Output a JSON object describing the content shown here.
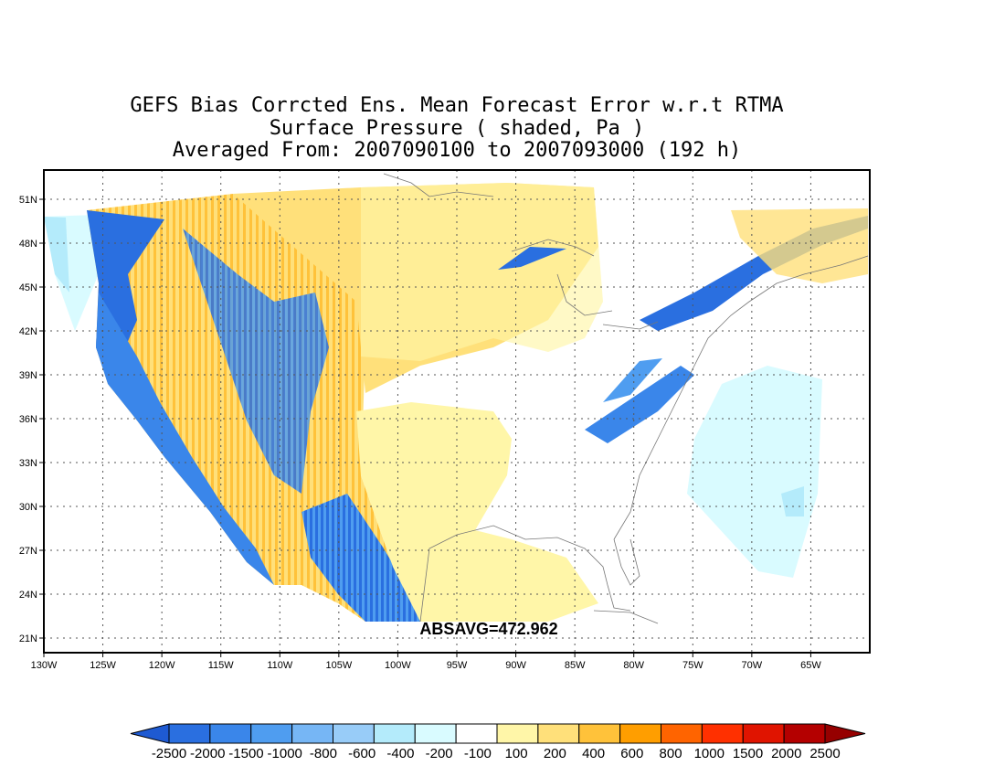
{
  "titles": {
    "line1": "GEFS Bias Corrcted Ens. Mean Forecast Error w.r.t RTMA",
    "line2": "Surface Pressure ( shaded, Pa )",
    "line3": "Averaged From: 2007090100 to 2007093000 (192 h)"
  },
  "map": {
    "lon_range": [
      -130,
      -60
    ],
    "lat_range": [
      20,
      53
    ],
    "lon_ticks": [
      "130W",
      "125W",
      "120W",
      "115W",
      "110W",
      "105W",
      "100W",
      "95W",
      "90W",
      "85W",
      "80W",
      "75W",
      "70W",
      "65W"
    ],
    "lat_ticks": [
      "51N",
      "48N",
      "45N",
      "42N",
      "39N",
      "36N",
      "33N",
      "30N",
      "27N",
      "24N",
      "21N"
    ],
    "grid": "dotted",
    "absavg_label": "ABSAVG=472.962"
  },
  "colorbar": {
    "labels": [
      "-2500",
      "-2000",
      "-1500",
      "-1000",
      "-800",
      "-600",
      "-400",
      "-200",
      "-100",
      "100",
      "200",
      "400",
      "600",
      "800",
      "1000",
      "1500",
      "2000",
      "2500"
    ],
    "colors": [
      "#1e5ad2",
      "#2a6fe0",
      "#3a86ea",
      "#4f9df0",
      "#76b6f5",
      "#98ccf8",
      "#b4ebfb",
      "#d9fbff",
      "#ffffff",
      "#fff6a8",
      "#ffe07a",
      "#ffc23a",
      "#ff9e00",
      "#ff6400",
      "#ff3000",
      "#e01400",
      "#b40000",
      "#960000"
    ]
  }
}
